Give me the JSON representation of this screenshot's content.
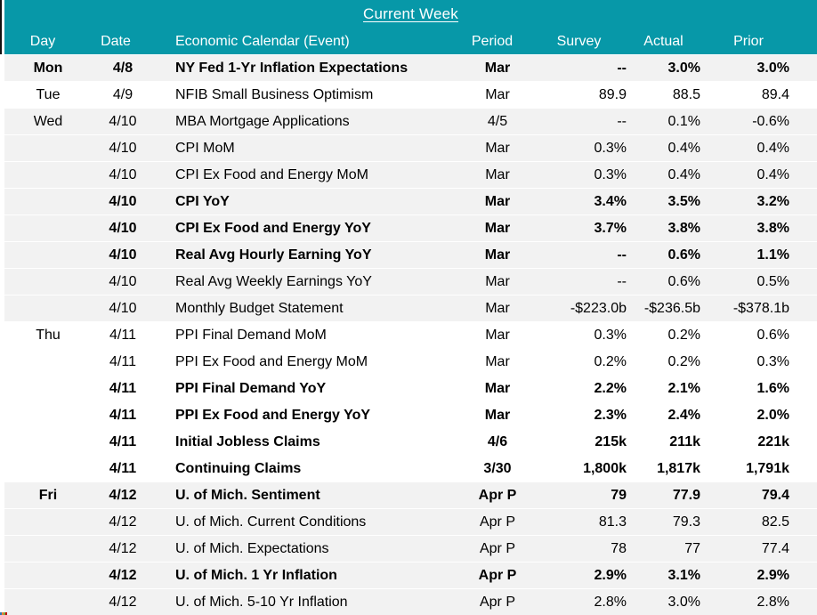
{
  "colors": {
    "teal": "#0798A8",
    "row_shaded": "#F2F2F2",
    "row_plain": "#FFFFFF",
    "header_text": "#FFFFFF",
    "body_text": "#000000"
  },
  "table": {
    "title": "Current Week",
    "columns": {
      "day": "Day",
      "date": "Date",
      "event": "Economic Calendar (Event)",
      "period": "Period",
      "survey": "Survey",
      "actual": "Actual",
      "prior": "Prior"
    },
    "rows": [
      {
        "day": "Mon",
        "date": "4/8",
        "event": "NY Fed 1-Yr Inflation Expectations",
        "period": "Mar",
        "survey": "--",
        "actual": "3.0%",
        "prior": "3.0%",
        "bold": true,
        "shaded": true
      },
      {
        "day": "Tue",
        "date": "4/9",
        "event": "NFIB Small Business Optimism",
        "period": "Mar",
        "survey": "89.9",
        "actual": "88.5",
        "prior": "89.4",
        "bold": false,
        "shaded": false
      },
      {
        "day": "Wed",
        "date": "4/10",
        "event": "MBA Mortgage Applications",
        "period": "4/5",
        "survey": "--",
        "actual": "0.1%",
        "prior": "-0.6%",
        "bold": false,
        "shaded": true
      },
      {
        "day": "",
        "date": "4/10",
        "event": "CPI MoM",
        "period": "Mar",
        "survey": "0.3%",
        "actual": "0.4%",
        "prior": "0.4%",
        "bold": false,
        "shaded": true
      },
      {
        "day": "",
        "date": "4/10",
        "event": "CPI Ex Food and Energy MoM",
        "period": "Mar",
        "survey": "0.3%",
        "actual": "0.4%",
        "prior": "0.4%",
        "bold": false,
        "shaded": true
      },
      {
        "day": "",
        "date": "4/10",
        "event": "CPI YoY",
        "period": "Mar",
        "survey": "3.4%",
        "actual": "3.5%",
        "prior": "3.2%",
        "bold": true,
        "shaded": true
      },
      {
        "day": "",
        "date": "4/10",
        "event": "CPI Ex Food and Energy YoY",
        "period": "Mar",
        "survey": "3.7%",
        "actual": "3.8%",
        "prior": "3.8%",
        "bold": true,
        "shaded": true
      },
      {
        "day": "",
        "date": "4/10",
        "event": "Real Avg Hourly Earning YoY",
        "period": "Mar",
        "survey": "--",
        "actual": "0.6%",
        "prior": "1.1%",
        "bold": true,
        "shaded": true
      },
      {
        "day": "",
        "date": "4/10",
        "event": "Real Avg Weekly Earnings YoY",
        "period": "Mar",
        "survey": "--",
        "actual": "0.6%",
        "prior": "0.5%",
        "bold": false,
        "shaded": true
      },
      {
        "day": "",
        "date": "4/10",
        "event": "Monthly Budget Statement",
        "period": "Mar",
        "survey": "-$223.0b",
        "actual": "-$236.5b",
        "prior": "-$378.1b",
        "bold": false,
        "shaded": true
      },
      {
        "day": "Thu",
        "date": "4/11",
        "event": "PPI Final Demand MoM",
        "period": "Mar",
        "survey": "0.3%",
        "actual": "0.2%",
        "prior": "0.6%",
        "bold": false,
        "shaded": false
      },
      {
        "day": "",
        "date": "4/11",
        "event": "PPI Ex Food and Energy MoM",
        "period": "Mar",
        "survey": "0.2%",
        "actual": "0.2%",
        "prior": "0.3%",
        "bold": false,
        "shaded": false
      },
      {
        "day": "",
        "date": "4/11",
        "event": "PPI Final Demand YoY",
        "period": "Mar",
        "survey": "2.2%",
        "actual": "2.1%",
        "prior": "1.6%",
        "bold": true,
        "shaded": false
      },
      {
        "day": "",
        "date": "4/11",
        "event": "PPI Ex Food and Energy YoY",
        "period": "Mar",
        "survey": "2.3%",
        "actual": "2.4%",
        "prior": "2.0%",
        "bold": true,
        "shaded": false
      },
      {
        "day": "",
        "date": "4/11",
        "event": "Initial Jobless Claims",
        "period": "4/6",
        "survey": "215k",
        "actual": "211k",
        "prior": "221k",
        "bold": true,
        "shaded": false
      },
      {
        "day": "",
        "date": "4/11",
        "event": "Continuing Claims",
        "period": "3/30",
        "survey": "1,800k",
        "actual": "1,817k",
        "prior": "1,791k",
        "bold": true,
        "shaded": false
      },
      {
        "day": "Fri",
        "date": "4/12",
        "event": "U. of Mich. Sentiment",
        "period": "Apr P",
        "survey": "79",
        "actual": "77.9",
        "prior": "79.4",
        "bold": true,
        "shaded": true
      },
      {
        "day": "",
        "date": "4/12",
        "event": "U. of Mich. Current Conditions",
        "period": "Apr P",
        "survey": "81.3",
        "actual": "79.3",
        "prior": "82.5",
        "bold": false,
        "shaded": true
      },
      {
        "day": "",
        "date": "4/12",
        "event": "U. of Mich. Expectations",
        "period": "Apr P",
        "survey": "78",
        "actual": "77",
        "prior": "77.4",
        "bold": false,
        "shaded": true
      },
      {
        "day": "",
        "date": "4/12",
        "event": "U. of Mich. 1 Yr Inflation",
        "period": "Apr P",
        "survey": "2.9%",
        "actual": "3.1%",
        "prior": "2.9%",
        "bold": true,
        "shaded": true
      },
      {
        "day": "",
        "date": "4/12",
        "event": "U. of Mich. 5-10 Yr Inflation",
        "period": "Apr P",
        "survey": "2.8%",
        "actual": "3.0%",
        "prior": "2.8%",
        "bold": false,
        "shaded": true
      }
    ]
  }
}
